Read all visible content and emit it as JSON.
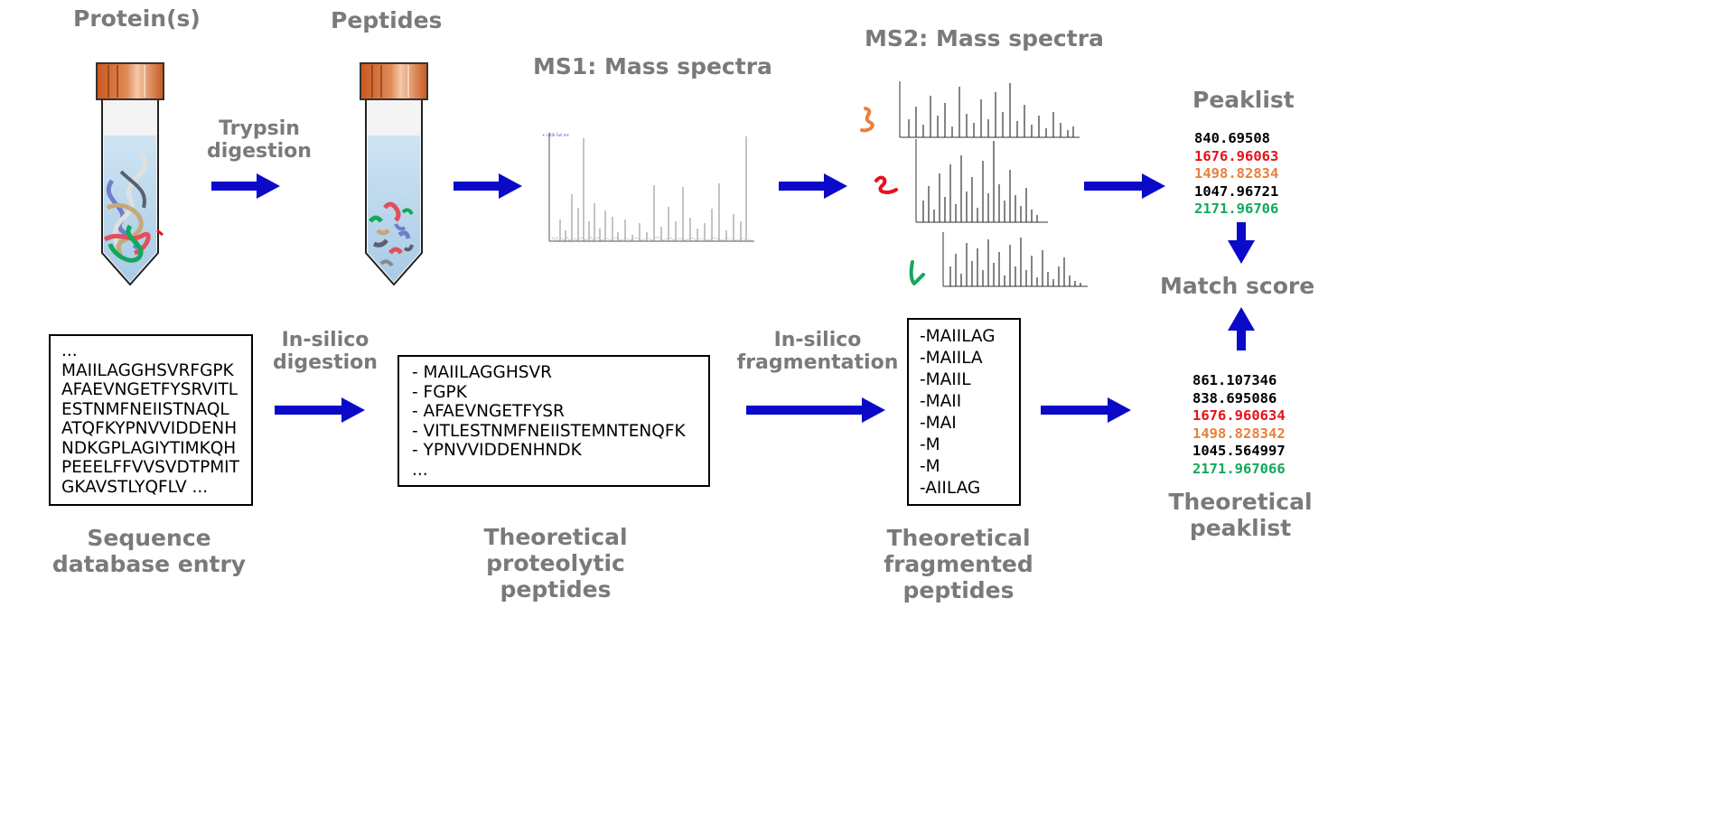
{
  "colors": {
    "arrow": "#0a0ac8",
    "label": "#7a7a7a",
    "red": "#e8101a",
    "orange": "#e8803a",
    "green": "#13a85a",
    "black": "#000000",
    "cap": "#d4682e"
  },
  "titles": {
    "proteins": "Protein(s)",
    "peptides": "Peptides",
    "ms1": "MS1: Mass spectra",
    "ms2": "MS2: Mass spectra",
    "peaklist": "Peaklist",
    "match_score": "Match score"
  },
  "steps": {
    "trypsin": [
      "Trypsin",
      "digestion"
    ],
    "insilico_digestion": [
      "In-silico",
      "digestion"
    ],
    "insilico_fragmentation": [
      "In-silico",
      "fragmentation"
    ]
  },
  "captions": {
    "sequence_db": [
      "Sequence",
      "database entry"
    ],
    "theoretical_proteolytic": [
      "Theoretical",
      "proteolytic",
      "peptides"
    ],
    "theoretical_fragmented": [
      "Theoretical",
      "fragmented",
      "peptides"
    ],
    "theoretical_peaklist": [
      "Theoretical",
      "peaklist"
    ]
  },
  "sequence_entry": [
    "...",
    "MAIILAGGHSVRFGPK",
    "AFAEVNGETFYSRVITL",
    "ESTNMFNEIISTNAQL",
    "ATQFKYPNVVIDDENH",
    "NDKGPLAGIYTIMKQH",
    "PEEELFFVVSVDTPMIT",
    "GKAVSTLYQFLV ..."
  ],
  "proteolytic_peptides": [
    "- MAIILAGGHSVR",
    "- FGPK",
    "- AFAEVNGETFYSR",
    "- VITLESTNMFNEIISTEMNTENQFK",
    "- YPNVVIDDENHNDK",
    "..."
  ],
  "fragmented_peptides": [
    "-MAIILAG",
    "-MAIILA",
    "-MAIIL",
    "-MAII",
    "-MAI",
    "-M",
    "-M",
    "-AIILAG"
  ],
  "peaklist": [
    {
      "value": "840.69508",
      "color": "#000000"
    },
    {
      "value": "1676.96063",
      "color": "#e8101a"
    },
    {
      "value": "1498.82834",
      "color": "#e8803a"
    },
    {
      "value": "1047.96721",
      "color": "#000000"
    },
    {
      "value": "2171.96706",
      "color": "#13a85a"
    }
  ],
  "theoretical_peaklist": [
    {
      "value": "861.107346",
      "color": "#000000"
    },
    {
      "value": "838.695086",
      "color": "#000000"
    },
    {
      "value": "1676.960634",
      "color": "#e8101a"
    },
    {
      "value": "1498.828342",
      "color": "#e8803a"
    },
    {
      "value": "1045.564997",
      "color": "#000000"
    },
    {
      "value": "2171.967066",
      "color": "#13a85a"
    }
  ]
}
